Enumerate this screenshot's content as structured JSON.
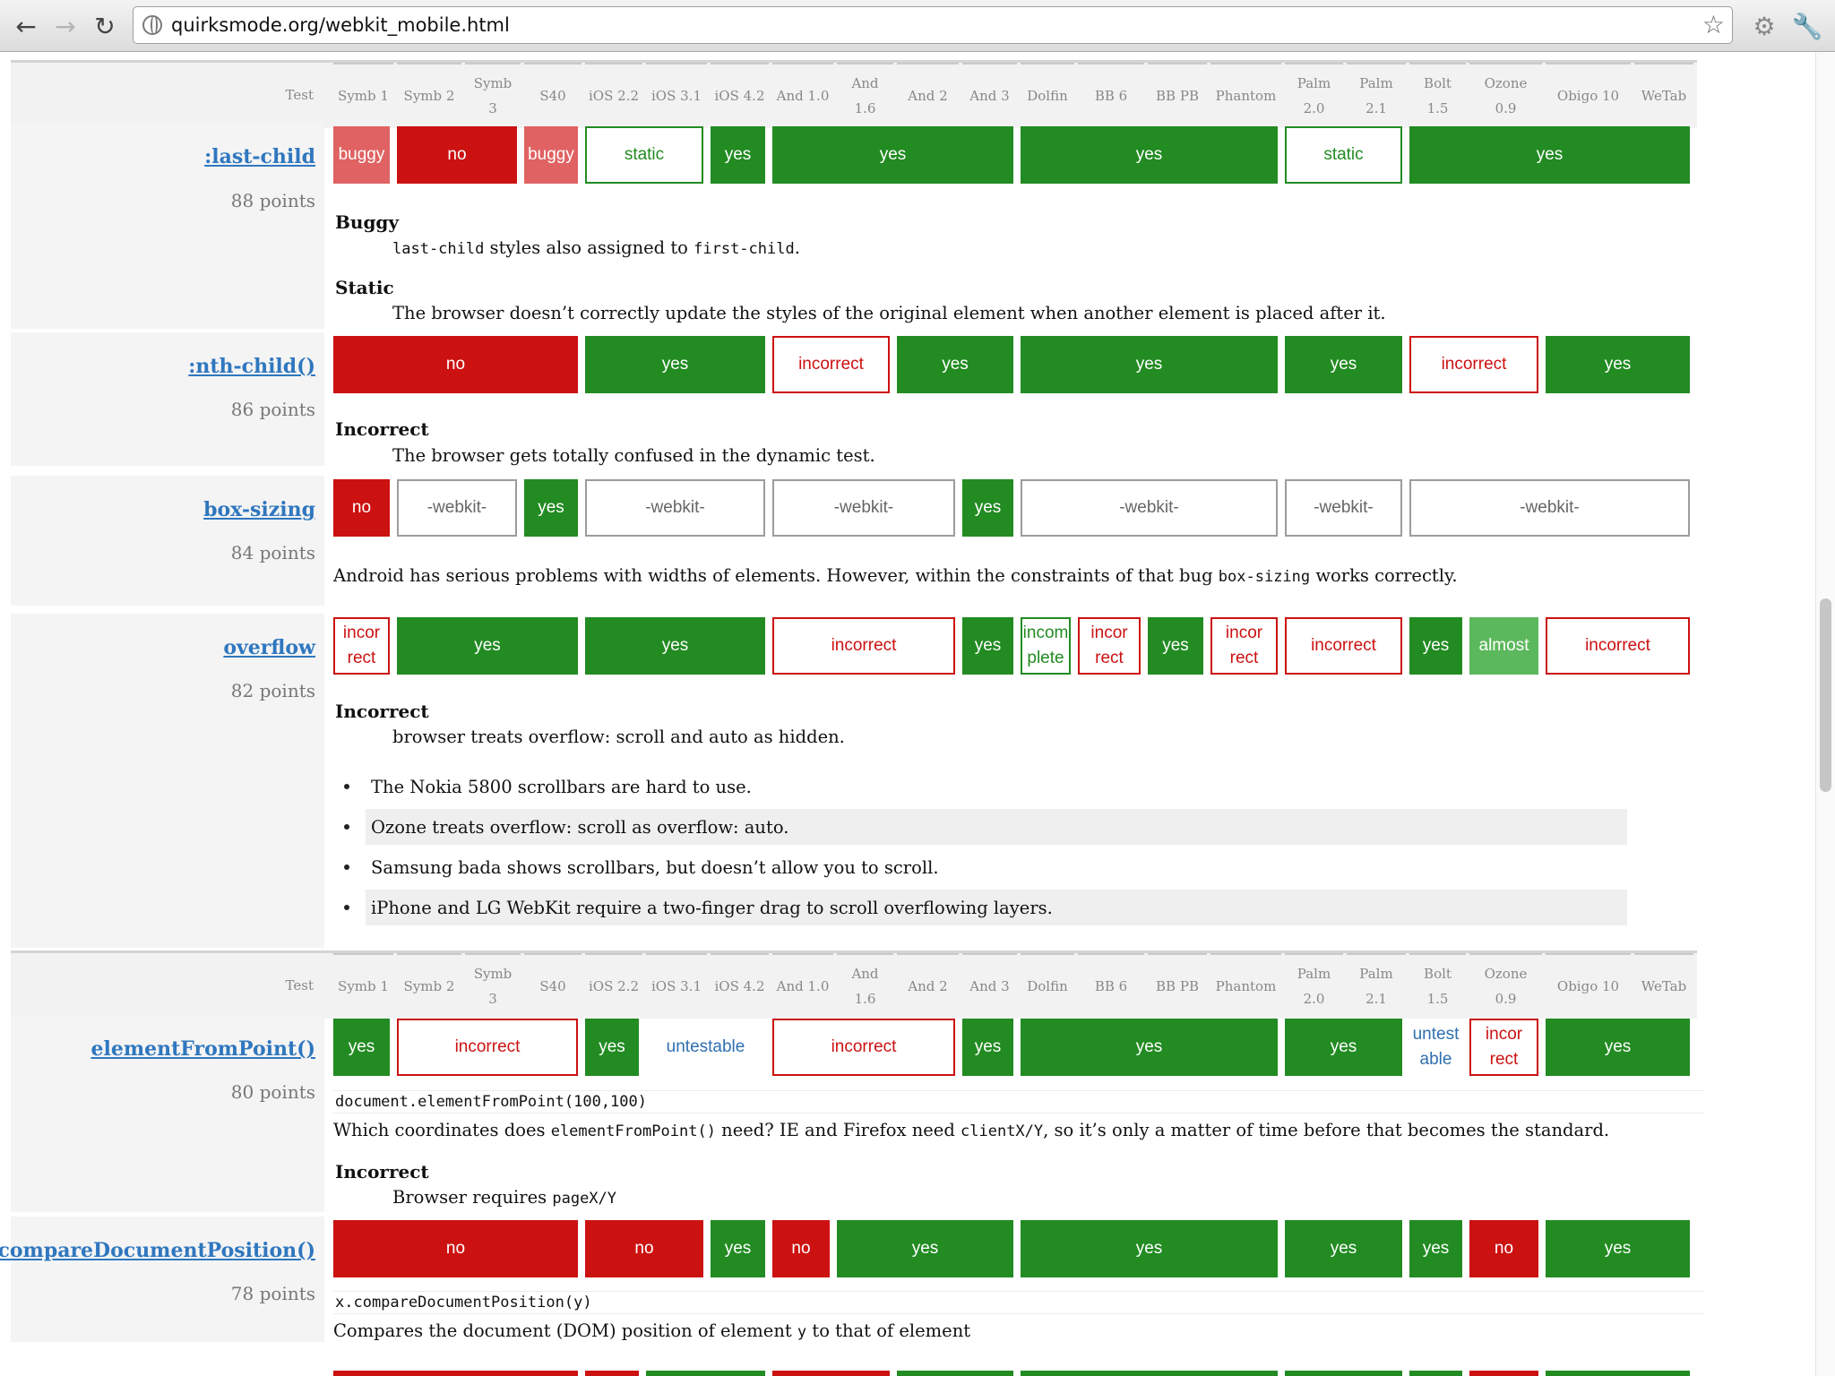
{
  "browser": {
    "url": "quirksmode.org/webkit_mobile.html",
    "back_icon": "back-arrow-icon",
    "forward_icon": "forward-arrow-icon",
    "reload_icon": "reload-icon",
    "page_icon": "globe-icon",
    "star_icon": "star-icon",
    "settings_icon": "settings-icon",
    "wrench_icon": "wrench-icon"
  },
  "colors": {
    "yes": "#228b22",
    "no": "#cc1111",
    "buggy": "#e06262",
    "almost": "#5cb85c",
    "link": "#2f77bf"
  },
  "header": {
    "test_label": "Test",
    "columns": [
      "Symb 1",
      "Symb 2",
      "Symb 3",
      "S40",
      "iOS 2.2",
      "iOS 3.1",
      "iOS 4.2",
      "And 1.0",
      "And 1.6",
      "And 2",
      "And 3",
      "Dolfin",
      "BB 6",
      "BB PB",
      "Phantom",
      "Palm 2.0",
      "Palm 2.1",
      "Bolt 1.5",
      "Ozone 0.9",
      "Obigo 10",
      "WeTab"
    ]
  },
  "tests": [
    {
      "name": ":last-child",
      "points": "88 points",
      "cells": [
        {
          "span": [
            0,
            0
          ],
          "label": "buggy",
          "status": "buggy"
        },
        {
          "span": [
            1,
            2
          ],
          "label": "no",
          "status": "no"
        },
        {
          "span": [
            3,
            3
          ],
          "label": "buggy",
          "status": "buggy"
        },
        {
          "span": [
            4,
            5
          ],
          "label": "static",
          "status": "static"
        },
        {
          "span": [
            6,
            6
          ],
          "label": "yes",
          "status": "yes"
        },
        {
          "span": [
            7,
            10
          ],
          "label": "yes",
          "status": "yes"
        },
        {
          "span": [
            11,
            14
          ],
          "label": "yes",
          "status": "yes"
        },
        {
          "span": [
            15,
            16
          ],
          "label": "static",
          "status": "static"
        },
        {
          "span": [
            17,
            20
          ],
          "label": "yes",
          "status": "yes"
        }
      ],
      "notes": [
        {
          "heading": "Buggy",
          "code": "last-child",
          "text": " styles also assigned to ",
          "code2": "first-child",
          "text2": "."
        },
        {
          "heading": "Static",
          "text": "The browser doesn’t correctly update the styles of the original element when another element is placed after it."
        }
      ]
    },
    {
      "name": ":nth-child()",
      "points": "86 points",
      "cells": [
        {
          "span": [
            0,
            3
          ],
          "label": "no",
          "status": "no"
        },
        {
          "span": [
            4,
            6
          ],
          "label": "yes",
          "status": "yes"
        },
        {
          "span": [
            7,
            8
          ],
          "label": "incorrect",
          "status": "incorrect"
        },
        {
          "span": [
            9,
            10
          ],
          "label": "yes",
          "status": "yes"
        },
        {
          "span": [
            11,
            14
          ],
          "label": "yes",
          "status": "yes"
        },
        {
          "span": [
            15,
            16
          ],
          "label": "yes",
          "status": "yes"
        },
        {
          "span": [
            17,
            18
          ],
          "label": "incorrect",
          "status": "incorrect"
        },
        {
          "span": [
            19,
            20
          ],
          "label": "yes",
          "status": "yes"
        }
      ],
      "notes": [
        {
          "heading": "Incorrect",
          "text": "The browser gets totally confused in the dynamic test."
        }
      ]
    },
    {
      "name": "box-sizing",
      "points": "84 points",
      "cells": [
        {
          "span": [
            0,
            0
          ],
          "label": "no",
          "status": "no"
        },
        {
          "span": [
            1,
            2
          ],
          "label": "-webkit-",
          "status": "webkit"
        },
        {
          "span": [
            3,
            3
          ],
          "label": "yes",
          "status": "yes"
        },
        {
          "span": [
            4,
            6
          ],
          "label": "-webkit-",
          "status": "webkit"
        },
        {
          "span": [
            7,
            9
          ],
          "label": "-webkit-",
          "status": "webkit"
        },
        {
          "span": [
            10,
            10
          ],
          "label": "yes",
          "status": "yes"
        },
        {
          "span": [
            11,
            14
          ],
          "label": "-webkit-",
          "status": "webkit"
        },
        {
          "span": [
            15,
            16
          ],
          "label": "-webkit-",
          "status": "webkit"
        },
        {
          "span": [
            17,
            20
          ],
          "label": "-webkit-",
          "status": "webkit"
        }
      ],
      "notes": [
        {
          "text": "Android has serious problems with widths of elements. However, within the constraints of that bug ",
          "code": "box-sizing",
          "text2": " works correctly."
        }
      ]
    },
    {
      "name": "overflow",
      "points": "82 points",
      "cells": [
        {
          "span": [
            0,
            0
          ],
          "label": "incor rect",
          "status": "incorrect"
        },
        {
          "span": [
            1,
            3
          ],
          "label": "yes",
          "status": "yes"
        },
        {
          "span": [
            4,
            6
          ],
          "label": "yes",
          "status": "yes"
        },
        {
          "span": [
            7,
            9
          ],
          "label": "incorrect",
          "status": "incorrect"
        },
        {
          "span": [
            10,
            10
          ],
          "label": "yes",
          "status": "yes"
        },
        {
          "span": [
            11,
            11
          ],
          "label": "incom plete",
          "status": "incomplete"
        },
        {
          "span": [
            12,
            12
          ],
          "label": "incor rect",
          "status": "incorrect"
        },
        {
          "span": [
            13,
            13
          ],
          "label": "yes",
          "status": "yes"
        },
        {
          "span": [
            14,
            14
          ],
          "label": "incor rect",
          "status": "incorrect"
        },
        {
          "span": [
            15,
            16
          ],
          "label": "incorrect",
          "status": "incorrect"
        },
        {
          "span": [
            17,
            17
          ],
          "label": "yes",
          "status": "yes"
        },
        {
          "span": [
            18,
            18
          ],
          "label": "almost",
          "status": "almost"
        },
        {
          "span": [
            19,
            20
          ],
          "label": "incorrect",
          "status": "incorrect"
        }
      ],
      "notes": [
        {
          "heading": "Incorrect",
          "text": "browser treats overflow: scroll and auto as hidden."
        }
      ],
      "list": [
        "The Nokia 5800 scrollbars are hard to use.",
        "Ozone treats overflow: scroll as overflow: auto.",
        "Samsung bada shows scrollbars, but doesn’t allow you to scroll.",
        "iPhone and LG WebKit require a two-finger drag to scroll overflowing layers."
      ]
    },
    {
      "name": "elementFromPoint()",
      "points": "80 points",
      "cells": [
        {
          "span": [
            0,
            0
          ],
          "label": "yes",
          "status": "yes"
        },
        {
          "span": [
            1,
            3
          ],
          "label": "incorrect",
          "status": "incorrect"
        },
        {
          "span": [
            4,
            4
          ],
          "label": "yes",
          "status": "yes"
        },
        {
          "span": [
            5,
            6
          ],
          "label": "untestable",
          "status": "untestable"
        },
        {
          "span": [
            7,
            9
          ],
          "label": "incorrect",
          "status": "incorrect"
        },
        {
          "span": [
            10,
            10
          ],
          "label": "yes",
          "status": "yes"
        },
        {
          "span": [
            11,
            14
          ],
          "label": "yes",
          "status": "yes"
        },
        {
          "span": [
            15,
            16
          ],
          "label": "yes",
          "status": "yes"
        },
        {
          "span": [
            17,
            17
          ],
          "label": "untest able",
          "status": "untestable"
        },
        {
          "span": [
            18,
            18
          ],
          "label": "incor rect",
          "status": "incorrect"
        },
        {
          "span": [
            19,
            20
          ],
          "label": "yes",
          "status": "yes"
        }
      ],
      "code_line": "document.elementFromPoint(100,100)",
      "notes": [
        {
          "text": "Which coordinates does ",
          "code": "elementFromPoint()",
          "text2": " need? IE and Firefox need ",
          "code2": "clientX/Y",
          "text3": ", so it’s only a matter of time before that becomes the standard."
        },
        {
          "heading": "Incorrect",
          "text": "Browser requires ",
          "code": "pageX/Y"
        }
      ]
    },
    {
      "name": "compareDocumentPosition()",
      "points": "78 points",
      "cells": [
        {
          "span": [
            0,
            3
          ],
          "label": "no",
          "status": "no"
        },
        {
          "span": [
            4,
            5
          ],
          "label": "no",
          "status": "no"
        },
        {
          "span": [
            6,
            6
          ],
          "label": "yes",
          "status": "yes"
        },
        {
          "span": [
            7,
            7
          ],
          "label": "no",
          "status": "no"
        },
        {
          "span": [
            8,
            10
          ],
          "label": "yes",
          "status": "yes"
        },
        {
          "span": [
            11,
            14
          ],
          "label": "yes",
          "status": "yes"
        },
        {
          "span": [
            15,
            16
          ],
          "label": "yes",
          "status": "yes"
        },
        {
          "span": [
            17,
            17
          ],
          "label": "yes",
          "status": "yes"
        },
        {
          "span": [
            18,
            18
          ],
          "label": "no",
          "status": "no"
        },
        {
          "span": [
            19,
            20
          ],
          "label": "yes",
          "status": "yes"
        }
      ],
      "code_line": "x.compareDocumentPosition(y)",
      "notes": [
        {
          "text": "Compares the document (DOM) position of element ",
          "code": "y",
          "text2": " to that of element"
        }
      ]
    }
  ]
}
